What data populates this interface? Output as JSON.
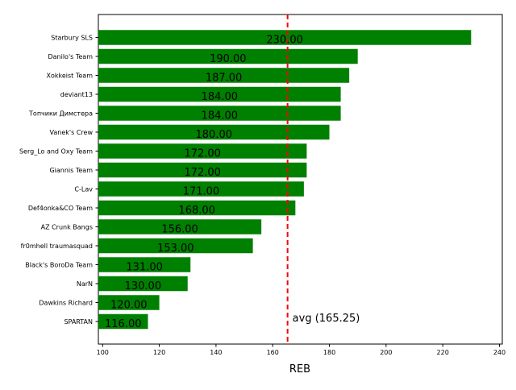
{
  "chart_data": {
    "type": "bar",
    "orientation": "horizontal",
    "categories": [
      "Starbury SLS",
      "Danilo's Team",
      "Xokkeist Team",
      "deviant13",
      "Топчики Димстера",
      "Vanek's Crew",
      "Serg_Lo and Oxy Team",
      "Giannis Team",
      "C-Lav",
      "Def4onka&CO Team",
      "AZ Crunk Bangs",
      "fr0mhell traumasquad",
      "Black's BoroDa Team",
      "NarN",
      "Dawkins Richard",
      "SPARTAN"
    ],
    "values": [
      230,
      190,
      187,
      184,
      184,
      180,
      172,
      172,
      171,
      168,
      156,
      153,
      131,
      130,
      120,
      116
    ],
    "value_labels": [
      "230.00",
      "190.00",
      "187.00",
      "184.00",
      "184.00",
      "180.00",
      "172.00",
      "172.00",
      "171.00",
      "168.00",
      "156.00",
      "153.00",
      "131.00",
      "130.00",
      "120.00",
      "116.00"
    ],
    "xlabel": "REB",
    "xlim": [
      98.5,
      241
    ],
    "xticks": [
      100,
      120,
      140,
      160,
      180,
      200,
      220,
      240
    ],
    "average": {
      "value": 165.25,
      "label": "avg (165.25)"
    },
    "colors": {
      "bar": "#008000",
      "average_line": "#ff0000",
      "axis": "#000000"
    },
    "grid": false
  }
}
